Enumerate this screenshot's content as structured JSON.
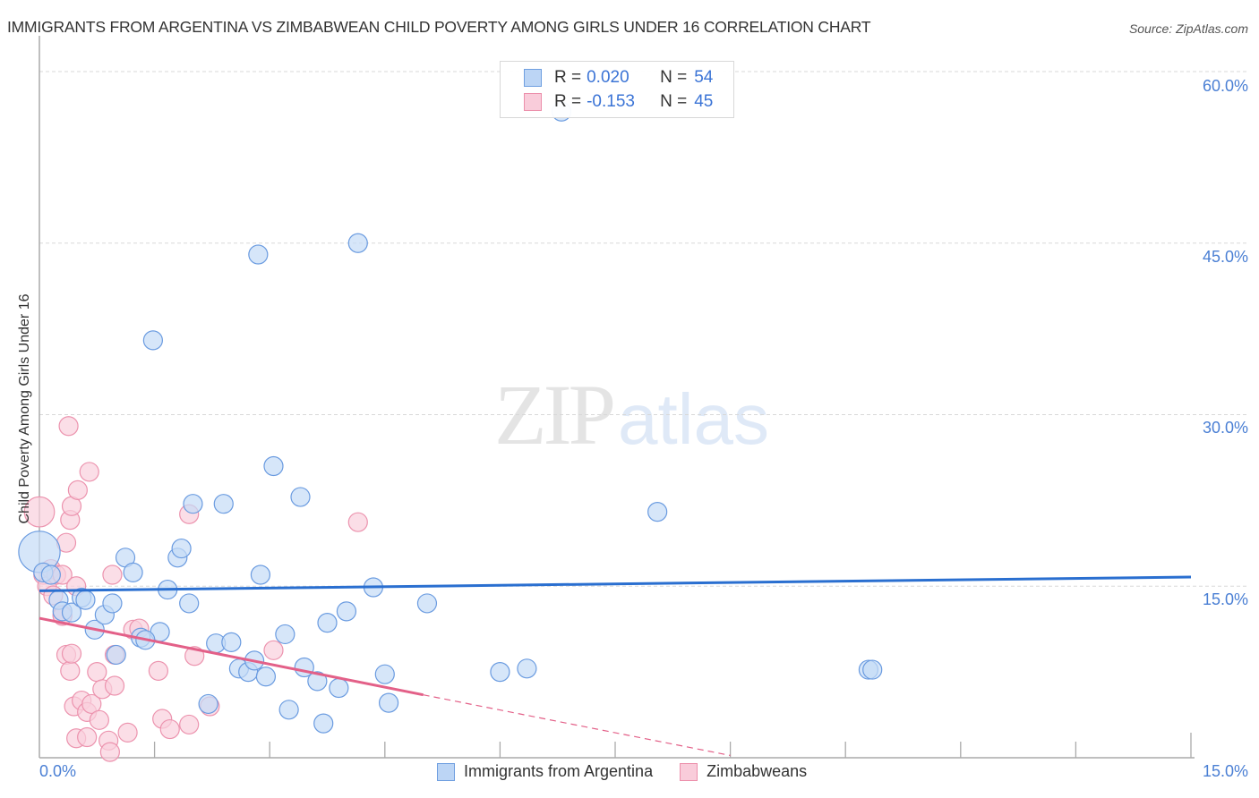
{
  "header": {
    "title": "IMMIGRANTS FROM ARGENTINA VS ZIMBABWEAN CHILD POVERTY AMONG GIRLS UNDER 16 CORRELATION CHART",
    "source": "Source: ZipAtlas.com"
  },
  "watermark": {
    "zip": "ZIP",
    "atlas": "atlas"
  },
  "axes": {
    "ylabel": "Child Poverty Among Girls Under 16",
    "yticks": [
      "60.0%",
      "45.0%",
      "30.0%",
      "15.0%"
    ],
    "xtick_left": "0.0%",
    "xtick_right": "15.0%"
  },
  "legend": {
    "series": [
      {
        "r_label": "R =",
        "r_value": "0.020",
        "n_label": "N =",
        "n_value": "54",
        "color": "#a8c8f0",
        "border": "#6f9fe0"
      },
      {
        "r_label": "R =",
        "r_value": "-0.153",
        "n_label": "N =",
        "n_value": "45",
        "color": "#f8c0d0",
        "border": "#ec8fab"
      }
    ]
  },
  "bottom_legend": {
    "items": [
      {
        "label": "Immigrants from Argentina",
        "color": "#bcd5f5",
        "border": "#6f9fe0"
      },
      {
        "label": "Zimbabweans",
        "color": "#f9ccda",
        "border": "#ec8fab"
      }
    ]
  },
  "colors": {
    "blue_fill": "#c5dbf6",
    "blue_stroke": "#6a9be0",
    "blue_line": "#2a6fd0",
    "pink_fill": "#f9d0dd",
    "pink_stroke": "#ec93ae",
    "pink_line": "#e36088",
    "tick_text": "#4a7fd4",
    "grid": "#d8d8d8"
  },
  "chart_data": {
    "type": "scatter",
    "title": "IMMIGRANTS FROM ARGENTINA VS ZIMBABWEAN CHILD POVERTY AMONG GIRLS UNDER 16 CORRELATION CHART",
    "xlabel": "",
    "ylabel": "Child Poverty Among Girls Under 16",
    "xlim": [
      0,
      15
    ],
    "ylim": [
      0,
      60
    ],
    "x_ticks": [
      "0.0%",
      "15.0%"
    ],
    "y_ticks": [
      "15.0%",
      "30.0%",
      "45.0%",
      "60.0%"
    ],
    "grid": "horizontal dashed",
    "legend_position": "top-center (stats) and bottom-center (series)",
    "series": [
      {
        "name": "Immigrants from Argentina",
        "r": 0.02,
        "n": 54,
        "trend": {
          "x": [
            0,
            15
          ],
          "y": [
            14.6,
            15.8
          ],
          "style": "solid"
        },
        "points": [
          [
            0.0,
            18.0,
            2.2
          ],
          [
            0.05,
            16.2
          ],
          [
            0.15,
            16.0
          ],
          [
            0.25,
            13.8
          ],
          [
            0.3,
            12.8
          ],
          [
            0.42,
            12.7
          ],
          [
            0.55,
            14.0
          ],
          [
            0.6,
            13.8
          ],
          [
            0.72,
            11.2
          ],
          [
            0.85,
            12.5
          ],
          [
            0.95,
            13.5
          ],
          [
            1.0,
            9.0
          ],
          [
            1.12,
            17.5
          ],
          [
            1.22,
            16.2
          ],
          [
            1.32,
            10.5
          ],
          [
            1.48,
            36.5
          ],
          [
            1.57,
            11.0
          ],
          [
            1.67,
            14.7
          ],
          [
            1.38,
            10.3
          ],
          [
            1.8,
            17.5
          ],
          [
            1.85,
            18.3
          ],
          [
            1.95,
            13.5
          ],
          [
            2.0,
            22.2
          ],
          [
            2.2,
            4.7
          ],
          [
            2.3,
            10.0
          ],
          [
            2.4,
            22.2
          ],
          [
            2.5,
            10.1
          ],
          [
            2.6,
            7.8
          ],
          [
            2.72,
            7.5
          ],
          [
            2.8,
            8.5
          ],
          [
            2.88,
            16.0
          ],
          [
            2.85,
            44.0
          ],
          [
            2.95,
            7.1
          ],
          [
            3.05,
            25.5
          ],
          [
            3.2,
            10.8
          ],
          [
            3.25,
            4.2
          ],
          [
            3.4,
            22.8
          ],
          [
            3.45,
            7.9
          ],
          [
            3.62,
            6.7
          ],
          [
            3.7,
            3.0
          ],
          [
            3.75,
            11.8
          ],
          [
            3.9,
            6.1
          ],
          [
            4.0,
            12.8
          ],
          [
            4.15,
            45.0
          ],
          [
            4.35,
            14.9
          ],
          [
            4.5,
            7.3
          ],
          [
            4.55,
            4.8
          ],
          [
            5.05,
            13.5
          ],
          [
            6.0,
            7.5
          ],
          [
            6.35,
            7.8
          ],
          [
            6.8,
            56.5
          ],
          [
            8.05,
            21.5
          ],
          [
            10.8,
            7.7
          ],
          [
            10.85,
            7.7
          ]
        ]
      },
      {
        "name": "Zimbabweans",
        "r": -0.153,
        "n": 45,
        "trend": {
          "x": [
            0,
            5.0
          ],
          "y": [
            12.2,
            5.5
          ],
          "style": "solid",
          "extension": {
            "x": [
              5.0,
              9.0
            ],
            "y": [
              5.5,
              0.2
            ],
            "style": "dashed"
          }
        },
        "points": [
          [
            0.0,
            21.5,
            1.6
          ],
          [
            0.05,
            16.0
          ],
          [
            0.1,
            15.0
          ],
          [
            0.15,
            16.5
          ],
          [
            0.18,
            14.2
          ],
          [
            0.22,
            16.0
          ],
          [
            0.3,
            12.5
          ],
          [
            0.3,
            12.4
          ],
          [
            0.3,
            16.0
          ],
          [
            0.35,
            18.8
          ],
          [
            0.38,
            29.0
          ],
          [
            0.4,
            20.8
          ],
          [
            0.35,
            9.0
          ],
          [
            0.4,
            7.6
          ],
          [
            0.42,
            9.1
          ],
          [
            0.45,
            4.5
          ],
          [
            0.48,
            1.7
          ],
          [
            0.42,
            22.0
          ],
          [
            0.48,
            15.0
          ],
          [
            0.5,
            23.4
          ],
          [
            0.55,
            5.0
          ],
          [
            0.62,
            1.8
          ],
          [
            0.62,
            4.0
          ],
          [
            0.65,
            25.0
          ],
          [
            0.68,
            4.7
          ],
          [
            0.75,
            7.5
          ],
          [
            0.78,
            3.3
          ],
          [
            0.82,
            6.0
          ],
          [
            0.9,
            1.5
          ],
          [
            0.92,
            0.5
          ],
          [
            0.95,
            16.0
          ],
          [
            0.98,
            9.0
          ],
          [
            0.98,
            6.3
          ],
          [
            1.15,
            2.2
          ],
          [
            1.22,
            11.2
          ],
          [
            1.3,
            11.3
          ],
          [
            1.55,
            7.6
          ],
          [
            1.6,
            3.4
          ],
          [
            1.7,
            2.5
          ],
          [
            1.95,
            2.9
          ],
          [
            1.95,
            21.3
          ],
          [
            2.02,
            8.9
          ],
          [
            2.22,
            4.5
          ],
          [
            3.05,
            9.4
          ],
          [
            4.15,
            20.6
          ]
        ]
      }
    ]
  }
}
